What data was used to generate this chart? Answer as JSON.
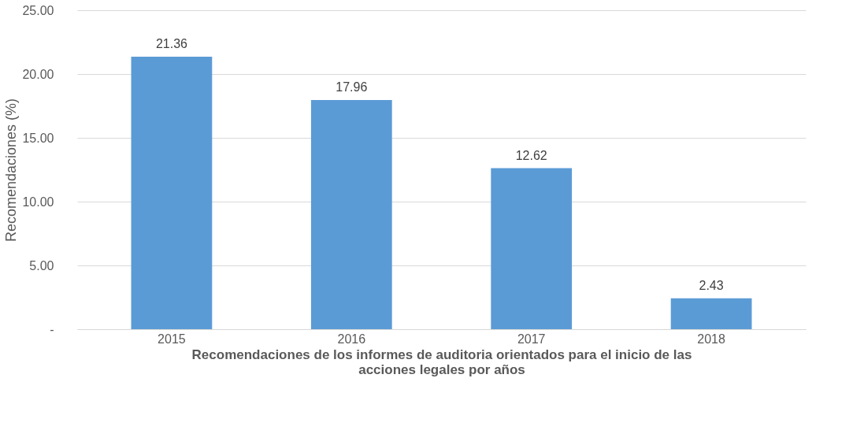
{
  "chart_data": {
    "type": "bar",
    "xlabel": "Recomendaciones de los informes de auditoria orientados para el inicio de las acciones legales por años",
    "ylabel": "Recomendaciones (%)",
    "categories": [
      "2015",
      "2016",
      "2017",
      "2018"
    ],
    "values": [
      21.36,
      17.96,
      12.62,
      2.43
    ],
    "color": "#5b9bd5",
    "data_labels": true,
    "ylim": [
      0,
      25
    ],
    "yticks": [
      {
        "value": 0,
        "label": "-"
      },
      {
        "value": 5,
        "label": "5.00"
      },
      {
        "value": 10,
        "label": "10.00"
      },
      {
        "value": 15,
        "label": "15.00"
      },
      {
        "value": 20,
        "label": "20.00"
      },
      {
        "value": 25,
        "label": "25.00"
      }
    ],
    "grid": "y"
  }
}
